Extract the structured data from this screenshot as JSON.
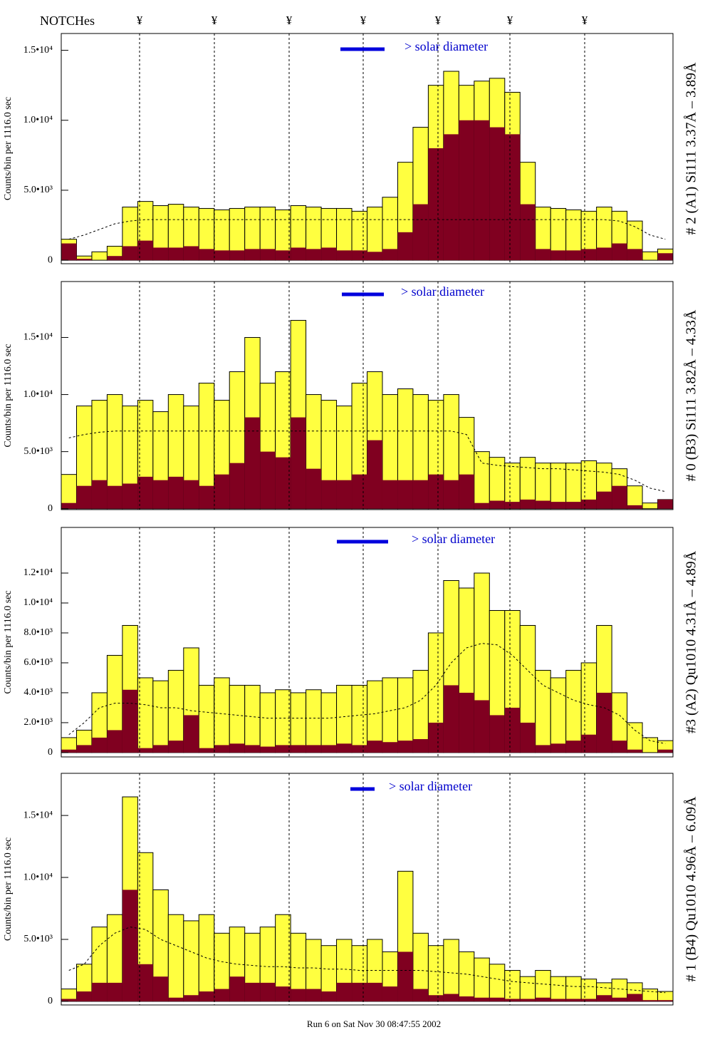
{
  "notches_label": "NOTCHes",
  "notch_marks": [
    "¥",
    "¥",
    "¥",
    "¥",
    "¥",
    "¥",
    "¥"
  ],
  "footer": "Run 6 on Sat Nov 30 08:47:55 2002",
  "chart_data": [
    {
      "type": "bar",
      "ylabel": "Counts/bin per   1116.0 sec",
      "right_label": "# 2 (A1) Si111  3.37Å – 3.89Å",
      "annotation": "> solar diameter",
      "categories": [
        null,
        null,
        null,
        null,
        null,
        null,
        null,
        null,
        null,
        null,
        null,
        null,
        null,
        null,
        null,
        null,
        null,
        null,
        null,
        null,
        null,
        null,
        null,
        null,
        null,
        null,
        null,
        null,
        null,
        null,
        null,
        null,
        null,
        null,
        null,
        null,
        null,
        null,
        null,
        null
      ],
      "ylim": [
        -250,
        16200
      ],
      "yticks": [
        0,
        {
          "value": 5000,
          "label": "5.0•10³"
        },
        {
          "value": 10000,
          "label": "1.0•10⁴"
        },
        {
          "value": 15000,
          "label": "1.5•10⁴"
        }
      ],
      "series": [
        {
          "color": "#ffff40",
          "values": [
            1500,
            300,
            600,
            1000,
            3800,
            4200,
            3900,
            4000,
            3800,
            3700,
            3600,
            3700,
            3800,
            3800,
            3600,
            3900,
            3800,
            3700,
            3700,
            3500,
            3800,
            4500,
            7000,
            9500,
            12500,
            13500,
            12500,
            12800,
            13000,
            12000,
            7000,
            3800,
            3700,
            3600,
            3500,
            3800,
            3500,
            2800,
            600,
            800
          ]
        },
        {
          "color": "#800020",
          "values": [
            1200,
            100,
            0,
            300,
            1000,
            1400,
            900,
            900,
            1000,
            800,
            700,
            700,
            800,
            800,
            700,
            900,
            800,
            900,
            700,
            700,
            600,
            800,
            2000,
            4000,
            8000,
            9000,
            10000,
            10000,
            9500,
            9000,
            4000,
            800,
            700,
            700,
            800,
            900,
            1200,
            800,
            0,
            500
          ]
        },
        {
          "color": "#000000",
          "type": "line",
          "values": [
            1500,
            1800,
            2200,
            2600,
            2800,
            2900,
            2900,
            2900,
            2900,
            2900,
            2900,
            2900,
            2900,
            2900,
            2900,
            2900,
            2900,
            2900,
            2900,
            2900,
            2900,
            2900,
            2900,
            2900,
            2900,
            2900,
            2900,
            2900,
            2900,
            2900,
            2900,
            2900,
            2900,
            2900,
            2900,
            2900,
            2800,
            2400,
            1800,
            1500
          ]
        }
      ]
    },
    {
      "type": "bar",
      "ylabel": "Counts/bin per   1116.0 sec",
      "right_label": "# 0 (B3) Si111  3.82Å – 4.33Å",
      "annotation": "> solar diameter",
      "categories": [
        null,
        null,
        null,
        null,
        null,
        null,
        null,
        null,
        null,
        null,
        null,
        null,
        null,
        null,
        null,
        null,
        null,
        null,
        null,
        null,
        null,
        null,
        null,
        null,
        null,
        null,
        null,
        null,
        null,
        null,
        null,
        null,
        null,
        null,
        null,
        null,
        null,
        null,
        null,
        null
      ],
      "ylim": [
        -80,
        19900
      ],
      "yticks": [
        0,
        {
          "value": 5000,
          "label": "5.0•10³"
        },
        {
          "value": 10000,
          "label": "1.0•10⁴"
        },
        {
          "value": 15000,
          "label": "1.5•10⁴"
        }
      ],
      "series": [
        {
          "color": "#ffff40",
          "values": [
            3000,
            9000,
            9500,
            10000,
            9000,
            9500,
            8500,
            10000,
            9000,
            11000,
            9500,
            12000,
            15000,
            11000,
            12000,
            16500,
            10000,
            9500,
            9000,
            11000,
            12000,
            10000,
            10500,
            10000,
            9500,
            10000,
            8000,
            5000,
            4500,
            4000,
            4500,
            4000,
            4000,
            4000,
            4200,
            4000,
            3500,
            2000,
            500,
            800
          ]
        },
        {
          "color": "#800020",
          "values": [
            500,
            2000,
            2500,
            2000,
            2200,
            2800,
            2500,
            2800,
            2500,
            2000,
            3000,
            4000,
            8000,
            5000,
            4500,
            8000,
            3500,
            2500,
            2500,
            3000,
            6000,
            2500,
            2500,
            2500,
            3000,
            2500,
            3000,
            500,
            700,
            600,
            800,
            700,
            600,
            600,
            800,
            1500,
            2000,
            300,
            0,
            800
          ]
        },
        {
          "color": "#000000",
          "type": "line",
          "values": [
            6200,
            6500,
            6700,
            6800,
            6800,
            6800,
            6800,
            6800,
            6800,
            6800,
            6800,
            6800,
            6800,
            6800,
            6800,
            6800,
            6800,
            6800,
            6800,
            6800,
            6800,
            6800,
            6800,
            6800,
            6800,
            6800,
            6500,
            4000,
            3800,
            3700,
            3600,
            3500,
            3500,
            3400,
            3300,
            3200,
            3000,
            2500,
            1800,
            1500
          ]
        }
      ]
    },
    {
      "type": "bar",
      "ylabel": "Counts/bin per   1116.0 sec",
      "right_label": "#3 (A2) Qu1010  4.31Å – 4.89Å",
      "annotation": "> solar diameter",
      "categories": [
        null,
        null,
        null,
        null,
        null,
        null,
        null,
        null,
        null,
        null,
        null,
        null,
        null,
        null,
        null,
        null,
        null,
        null,
        null,
        null,
        null,
        null,
        null,
        null,
        null,
        null,
        null,
        null,
        null,
        null,
        null,
        null,
        null,
        null,
        null,
        null,
        null,
        null,
        null,
        null
      ],
      "ylim": [
        -290,
        15050
      ],
      "yticks": [
        0,
        {
          "value": 2000,
          "label": "2.0•10³"
        },
        {
          "value": 4000,
          "label": "4.0•10³"
        },
        {
          "value": 6000,
          "label": "6.0•10³"
        },
        {
          "value": 8000,
          "label": "8.0•10³"
        },
        {
          "value": 10000,
          "label": "1.0•10⁴"
        },
        {
          "value": 12000,
          "label": "1.2•10⁴"
        }
      ],
      "series": [
        {
          "color": "#ffff40",
          "values": [
            1000,
            1500,
            4000,
            6500,
            8500,
            5000,
            4800,
            5500,
            7000,
            4500,
            5000,
            4500,
            4500,
            4000,
            4200,
            4000,
            4200,
            4000,
            4500,
            4500,
            4800,
            5000,
            5000,
            5500,
            8000,
            11500,
            11000,
            12000,
            9500,
            9500,
            8500,
            5500,
            5000,
            5500,
            6000,
            8500,
            4000,
            2000,
            1000,
            800
          ]
        },
        {
          "color": "#800020",
          "values": [
            200,
            500,
            1000,
            1500,
            4200,
            300,
            500,
            800,
            2500,
            300,
            500,
            600,
            500,
            400,
            500,
            500,
            500,
            500,
            600,
            500,
            800,
            700,
            800,
            900,
            2000,
            4500,
            4000,
            3500,
            2500,
            3000,
            2000,
            500,
            600,
            800,
            1200,
            4000,
            800,
            200,
            0,
            200
          ]
        },
        {
          "color": "#000000",
          "type": "line",
          "values": [
            1200,
            2000,
            3000,
            3300,
            3300,
            3200,
            3000,
            3000,
            2800,
            2700,
            2600,
            2500,
            2400,
            2300,
            2300,
            2300,
            2300,
            2300,
            2400,
            2500,
            2600,
            2800,
            3000,
            3500,
            4500,
            6000,
            7000,
            7300,
            7200,
            6500,
            5500,
            4500,
            4000,
            3500,
            3200,
            3000,
            2500,
            1500,
            800,
            600
          ]
        }
      ]
    },
    {
      "type": "bar",
      "ylabel": "Counts/bin per   1116.0 sec",
      "right_label": "# 1 (B4) Qu1010 4.96Å – 6.09Å",
      "annotation": "> solar diameter",
      "categories": [
        null,
        null,
        null,
        null,
        null,
        null,
        null,
        null,
        null,
        null,
        null,
        null,
        null,
        null,
        null,
        null,
        null,
        null,
        null,
        null,
        null,
        null,
        null,
        null,
        null,
        null,
        null,
        null,
        null,
        null,
        null,
        null,
        null,
        null,
        null,
        null,
        null,
        null,
        null,
        null
      ],
      "ylim": [
        -290,
        18400
      ],
      "yticks": [
        0,
        {
          "value": 5000,
          "label": "5.0•10³"
        },
        {
          "value": 10000,
          "label": "1.0•10⁴"
        },
        {
          "value": 15000,
          "label": "1.5•10⁴"
        }
      ],
      "series": [
        {
          "color": "#ffff40",
          "values": [
            1000,
            3000,
            6000,
            7000,
            16500,
            12000,
            9000,
            7000,
            6500,
            7000,
            5500,
            6000,
            5500,
            6000,
            7000,
            5500,
            5000,
            4500,
            5000,
            4500,
            5000,
            4000,
            10500,
            5500,
            4500,
            5000,
            4000,
            3500,
            3000,
            2500,
            2000,
            2500,
            2000,
            2000,
            1800,
            1500,
            1800,
            1500,
            1000,
            800
          ]
        },
        {
          "color": "#800020",
          "values": [
            200,
            800,
            1500,
            1500,
            9000,
            3000,
            2000,
            300,
            500,
            800,
            1000,
            2000,
            1500,
            1500,
            1200,
            1000,
            1000,
            800,
            1500,
            1500,
            1500,
            1200,
            4000,
            1000,
            500,
            600,
            400,
            300,
            300,
            200,
            200,
            300,
            200,
            200,
            200,
            500,
            300,
            600,
            100,
            100
          ]
        },
        {
          "color": "#000000",
          "type": "line",
          "values": [
            2500,
            3000,
            4500,
            5500,
            6000,
            5800,
            5000,
            4500,
            4000,
            3500,
            3200,
            3000,
            2900,
            2800,
            2800,
            2700,
            2700,
            2600,
            2600,
            2500,
            2500,
            2500,
            2500,
            2500,
            2400,
            2300,
            2200,
            2000,
            1800,
            1600,
            1500,
            1400,
            1300,
            1200,
            1200,
            1100,
            1000,
            900,
            800,
            700
          ]
        }
      ]
    }
  ]
}
